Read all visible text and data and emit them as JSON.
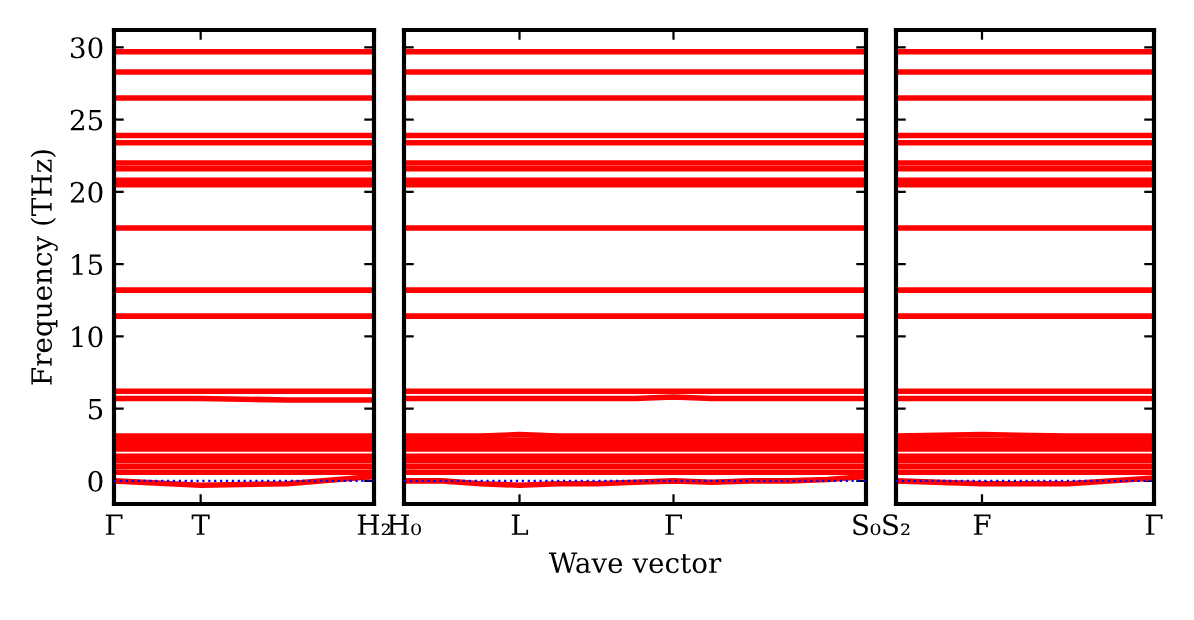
{
  "chart_data": [
    {
      "type": "line",
      "ylabel": "Frequency (THz)",
      "categories": [
        "Γ",
        "T",
        null,
        "H₂"
      ],
      "ylim": [
        -1.6,
        31.2
      ],
      "yticks": [
        0,
        5,
        10,
        15,
        20,
        25,
        30
      ],
      "line_style": "solid",
      "marker": "none",
      "ref_lines": [
        {
          "axis": "y",
          "value": 0,
          "color": "#0000ff",
          "line_style": "dotted"
        }
      ],
      "series": [
        {
          "color": "#ff0000",
          "values": [
            0,
            -0.3,
            -0.2,
            0.3
          ]
        },
        {
          "color": "#ff0000",
          "values": [
            0.6,
            0.6,
            0.6,
            0.6
          ]
        },
        {
          "color": "#ff0000",
          "values": [
            1.0,
            1.0,
            1.0,
            1.0
          ]
        },
        {
          "color": "#ff0000",
          "values": [
            1.4,
            1.4,
            1.4,
            1.4
          ]
        },
        {
          "color": "#ff0000",
          "values": [
            1.7,
            1.7,
            1.7,
            1.7
          ]
        },
        {
          "color": "#ff0000",
          "values": [
            2.2,
            2.2,
            2.2,
            2.2
          ]
        },
        {
          "color": "#ff0000",
          "values": [
            2.5,
            2.5,
            2.5,
            2.5
          ]
        },
        {
          "color": "#ff0000",
          "values": [
            2.8,
            2.8,
            2.8,
            2.8
          ]
        },
        {
          "color": "#ff0000",
          "values": [
            3.1,
            3.1,
            3.1,
            3.1
          ]
        },
        {
          "color": "#ff0000",
          "values": [
            5.7,
            5.7,
            5.6,
            5.6
          ]
        },
        {
          "color": "#ff0000",
          "values": [
            6.2,
            6.2,
            6.2,
            6.2
          ]
        },
        {
          "color": "#ff0000",
          "values": [
            11.4,
            11.4,
            11.4,
            11.4
          ]
        },
        {
          "color": "#ff0000",
          "values": [
            13.2,
            13.2,
            13.2,
            13.2
          ]
        },
        {
          "color": "#ff0000",
          "values": [
            17.5,
            17.5,
            17.5,
            17.5
          ]
        },
        {
          "color": "#ff0000",
          "values": [
            20.5,
            20.5,
            20.5,
            20.5
          ]
        },
        {
          "color": "#ff0000",
          "values": [
            20.8,
            20.8,
            20.8,
            20.8
          ]
        },
        {
          "color": "#ff0000",
          "values": [
            21.6,
            21.6,
            21.6,
            21.6
          ]
        },
        {
          "color": "#ff0000",
          "values": [
            22.0,
            22.0,
            22.0,
            22.0
          ]
        },
        {
          "color": "#ff0000",
          "values": [
            23.4,
            23.4,
            23.4,
            23.4
          ]
        },
        {
          "color": "#ff0000",
          "values": [
            23.9,
            23.9,
            23.9,
            23.9
          ]
        },
        {
          "color": "#ff0000",
          "values": [
            26.5,
            26.5,
            26.5,
            26.5
          ]
        },
        {
          "color": "#ff0000",
          "values": [
            28.3,
            28.3,
            28.3,
            28.3
          ]
        },
        {
          "color": "#ff0000",
          "values": [
            29.7,
            29.7,
            29.7,
            29.7
          ]
        }
      ]
    },
    {
      "type": "line",
      "xlabel": "Wave vector",
      "tick_labels": "x",
      "categories": [
        "H₀",
        null,
        null,
        "L",
        null,
        null,
        null,
        "Γ",
        null,
        null,
        null,
        null,
        "S₀"
      ],
      "ylim": [
        -1.6,
        31.2
      ],
      "yticks": [
        0,
        5,
        10,
        15,
        20,
        25,
        30
      ],
      "line_style": "solid",
      "marker": "none",
      "ref_lines": [
        {
          "axis": "y",
          "value": 0,
          "color": "#0000ff",
          "line_style": "dotted"
        }
      ],
      "series": [
        {
          "color": "#ff0000",
          "values": [
            0,
            0,
            -0.2,
            -0.3,
            -0.2,
            -0.2,
            -0.1,
            0,
            -0.1,
            0,
            0,
            0.1,
            0.3
          ]
        },
        {
          "color": "#ff0000",
          "values": [
            0.6,
            0.6,
            0.6,
            0.6,
            0.6,
            0.6,
            0.6,
            0.6,
            0.6,
            0.6,
            0.6,
            0.6,
            0.6
          ]
        },
        {
          "color": "#ff0000",
          "values": [
            1.0,
            1.0,
            1.0,
            1.0,
            1.0,
            1.0,
            1.0,
            1.0,
            1.0,
            1.0,
            1.0,
            1.0,
            1.0
          ]
        },
        {
          "color": "#ff0000",
          "values": [
            1.4,
            1.4,
            1.4,
            1.4,
            1.4,
            1.4,
            1.4,
            1.4,
            1.4,
            1.4,
            1.4,
            1.4,
            1.4
          ]
        },
        {
          "color": "#ff0000",
          "values": [
            1.7,
            1.7,
            1.7,
            1.7,
            1.7,
            1.7,
            1.7,
            1.7,
            1.7,
            1.7,
            1.7,
            1.7,
            1.7
          ]
        },
        {
          "color": "#ff0000",
          "values": [
            2.2,
            2.2,
            2.2,
            2.2,
            2.2,
            2.2,
            2.2,
            2.2,
            2.2,
            2.2,
            2.2,
            2.2,
            2.2
          ]
        },
        {
          "color": "#ff0000",
          "values": [
            2.5,
            2.5,
            2.5,
            2.5,
            2.5,
            2.5,
            2.5,
            2.5,
            2.5,
            2.5,
            2.5,
            2.5,
            2.5
          ]
        },
        {
          "color": "#ff0000",
          "values": [
            2.8,
            2.8,
            2.8,
            2.8,
            2.8,
            2.8,
            2.8,
            2.8,
            2.8,
            2.8,
            2.8,
            2.8,
            2.8
          ]
        },
        {
          "color": "#ff0000",
          "values": [
            3.1,
            3.1,
            3.1,
            3.2,
            3.1,
            3.1,
            3.1,
            3.1,
            3.1,
            3.1,
            3.1,
            3.1,
            3.1
          ]
        },
        {
          "color": "#ff0000",
          "values": [
            5.7,
            5.7,
            5.7,
            5.7,
            5.7,
            5.7,
            5.7,
            5.8,
            5.7,
            5.7,
            5.7,
            5.7,
            5.7
          ]
        },
        {
          "color": "#ff0000",
          "values": [
            6.2,
            6.2,
            6.2,
            6.2,
            6.2,
            6.2,
            6.2,
            6.2,
            6.2,
            6.2,
            6.2,
            6.2,
            6.2
          ]
        },
        {
          "color": "#ff0000",
          "values": [
            11.4,
            11.4,
            11.4,
            11.4,
            11.4,
            11.4,
            11.4,
            11.4,
            11.4,
            11.4,
            11.4,
            11.4,
            11.4
          ]
        },
        {
          "color": "#ff0000",
          "values": [
            13.2,
            13.2,
            13.2,
            13.2,
            13.2,
            13.2,
            13.2,
            13.2,
            13.2,
            13.2,
            13.2,
            13.2,
            13.2
          ]
        },
        {
          "color": "#ff0000",
          "values": [
            17.5,
            17.5,
            17.5,
            17.5,
            17.5,
            17.5,
            17.5,
            17.5,
            17.5,
            17.5,
            17.5,
            17.5,
            17.5
          ]
        },
        {
          "color": "#ff0000",
          "values": [
            20.5,
            20.5,
            20.5,
            20.5,
            20.5,
            20.5,
            20.5,
            20.5,
            20.5,
            20.5,
            20.5,
            20.5,
            20.5
          ]
        },
        {
          "color": "#ff0000",
          "values": [
            20.8,
            20.8,
            20.8,
            20.8,
            20.8,
            20.8,
            20.8,
            20.8,
            20.8,
            20.8,
            20.8,
            20.8,
            20.8
          ]
        },
        {
          "color": "#ff0000",
          "values": [
            21.6,
            21.6,
            21.6,
            21.6,
            21.6,
            21.6,
            21.6,
            21.6,
            21.6,
            21.6,
            21.6,
            21.6,
            21.6
          ]
        },
        {
          "color": "#ff0000",
          "values": [
            22.0,
            22.0,
            22.0,
            22.0,
            22.0,
            22.0,
            22.0,
            22.0,
            22.0,
            22.0,
            22.0,
            22.0,
            22.0
          ]
        },
        {
          "color": "#ff0000",
          "values": [
            23.4,
            23.4,
            23.4,
            23.4,
            23.4,
            23.4,
            23.4,
            23.4,
            23.4,
            23.4,
            23.4,
            23.4,
            23.4
          ]
        },
        {
          "color": "#ff0000",
          "values": [
            23.9,
            23.9,
            23.9,
            23.9,
            23.9,
            23.9,
            23.9,
            23.9,
            23.9,
            23.9,
            23.9,
            23.9,
            23.9
          ]
        },
        {
          "color": "#ff0000",
          "values": [
            26.5,
            26.5,
            26.5,
            26.5,
            26.5,
            26.5,
            26.5,
            26.5,
            26.5,
            26.5,
            26.5,
            26.5,
            26.5
          ]
        },
        {
          "color": "#ff0000",
          "values": [
            28.3,
            28.3,
            28.3,
            28.3,
            28.3,
            28.3,
            28.3,
            28.3,
            28.3,
            28.3,
            28.3,
            28.3,
            28.3
          ]
        },
        {
          "color": "#ff0000",
          "values": [
            29.7,
            29.7,
            29.7,
            29.7,
            29.7,
            29.7,
            29.7,
            29.7,
            29.7,
            29.7,
            29.7,
            29.7,
            29.7
          ]
        }
      ]
    },
    {
      "type": "line",
      "tick_labels": "x",
      "categories": [
        "S₂",
        "F",
        null,
        "Γ"
      ],
      "ylim": [
        -1.6,
        31.2
      ],
      "yticks": [
        0,
        5,
        10,
        15,
        20,
        25,
        30
      ],
      "line_style": "solid",
      "marker": "none",
      "ref_lines": [
        {
          "axis": "y",
          "value": 0,
          "color": "#0000ff",
          "line_style": "dotted"
        }
      ],
      "series": [
        {
          "color": "#ff0000",
          "values": [
            0,
            -0.2,
            -0.2,
            0.2
          ]
        },
        {
          "color": "#ff0000",
          "values": [
            0.6,
            0.6,
            0.6,
            0.6
          ]
        },
        {
          "color": "#ff0000",
          "values": [
            1.0,
            1.0,
            1.0,
            1.0
          ]
        },
        {
          "color": "#ff0000",
          "values": [
            1.4,
            1.4,
            1.4,
            1.4
          ]
        },
        {
          "color": "#ff0000",
          "values": [
            1.7,
            1.7,
            1.7,
            1.7
          ]
        },
        {
          "color": "#ff0000",
          "values": [
            2.2,
            2.2,
            2.2,
            2.2
          ]
        },
        {
          "color": "#ff0000",
          "values": [
            2.5,
            2.5,
            2.5,
            2.5
          ]
        },
        {
          "color": "#ff0000",
          "values": [
            2.8,
            2.8,
            2.8,
            2.8
          ]
        },
        {
          "color": "#ff0000",
          "values": [
            3.1,
            3.2,
            3.1,
            3.1
          ]
        },
        {
          "color": "#ff0000",
          "values": [
            5.7,
            5.7,
            5.7,
            5.7
          ]
        },
        {
          "color": "#ff0000",
          "values": [
            6.2,
            6.2,
            6.2,
            6.2
          ]
        },
        {
          "color": "#ff0000",
          "values": [
            11.4,
            11.4,
            11.4,
            11.4
          ]
        },
        {
          "color": "#ff0000",
          "values": [
            13.2,
            13.2,
            13.2,
            13.2
          ]
        },
        {
          "color": "#ff0000",
          "values": [
            17.5,
            17.5,
            17.5,
            17.5
          ]
        },
        {
          "color": "#ff0000",
          "values": [
            20.5,
            20.5,
            20.5,
            20.5
          ]
        },
        {
          "color": "#ff0000",
          "values": [
            20.8,
            20.8,
            20.8,
            20.8
          ]
        },
        {
          "color": "#ff0000",
          "values": [
            21.6,
            21.6,
            21.6,
            21.6
          ]
        },
        {
          "color": "#ff0000",
          "values": [
            22.0,
            22.0,
            22.0,
            22.0
          ]
        },
        {
          "color": "#ff0000",
          "values": [
            23.4,
            23.4,
            23.4,
            23.4
          ]
        },
        {
          "color": "#ff0000",
          "values": [
            23.9,
            23.9,
            23.9,
            23.9
          ]
        },
        {
          "color": "#ff0000",
          "values": [
            26.5,
            26.5,
            26.5,
            26.5
          ]
        },
        {
          "color": "#ff0000",
          "values": [
            28.3,
            28.3,
            28.3,
            28.3
          ]
        },
        {
          "color": "#ff0000",
          "values": [
            29.7,
            29.7,
            29.7,
            29.7
          ]
        }
      ]
    }
  ]
}
